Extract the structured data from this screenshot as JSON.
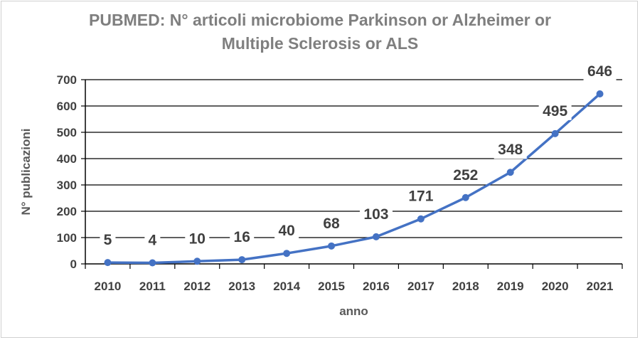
{
  "chart_data": {
    "type": "line",
    "title_line1": "PUBMED: N° articoli microbiome Parkinson or Alzheimer or",
    "title_line2": "Multiple Sclerosis or ALS",
    "xlabel": "anno",
    "ylabel": "N° publicazioni",
    "x": [
      "2010",
      "2011",
      "2012",
      "2013",
      "2014",
      "2015",
      "2016",
      "2017",
      "2018",
      "2019",
      "2020",
      "2021"
    ],
    "series": [
      {
        "values": [
          5,
          4,
          10,
          16,
          40,
          68,
          103,
          171,
          252,
          348,
          495,
          646
        ]
      }
    ],
    "ylim": [
      0,
      700
    ],
    "yticks": [
      0,
      100,
      200,
      300,
      400,
      500,
      600,
      700
    ],
    "grid": true,
    "line_color": "#4472c4"
  }
}
